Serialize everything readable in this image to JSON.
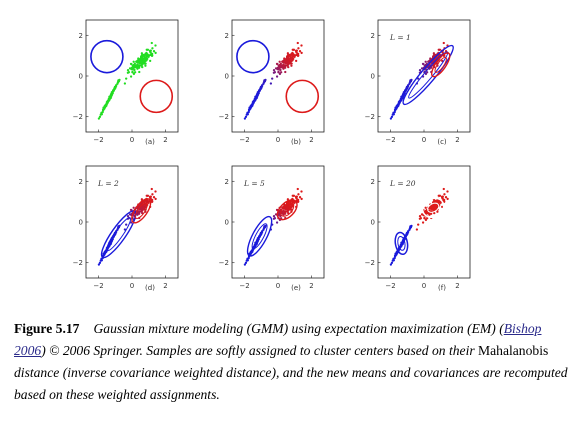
{
  "panels": [
    {
      "id": "a",
      "label": "(a)",
      "L_text": ""
    },
    {
      "id": "b",
      "label": "(b)",
      "L_text": ""
    },
    {
      "id": "c",
      "label": "(c)",
      "L_text": "L = 1"
    },
    {
      "id": "d",
      "label": "(d)",
      "L_text": "L = 2"
    },
    {
      "id": "e",
      "label": "(e)",
      "L_text": "L = 5"
    },
    {
      "id": "f",
      "label": "(f)",
      "L_text": "L = 20"
    }
  ],
  "axis": {
    "xticks": [
      "−2",
      "0",
      "2"
    ],
    "yticks": [
      "2",
      "0",
      "−2"
    ]
  },
  "colors": {
    "blue": "#1a1adb",
    "red": "#dd1a1a",
    "green": "#22dd22",
    "purple": "#7a1ab0"
  },
  "caption": {
    "label": "Figure 5.17",
    "part1": "Gaussian mixture modeling (GMM) using expectation maximization (EM)",
    "paren_open": "(",
    "citation": "Bishop 2006",
    "paren_close": ")",
    "part2": " © 2006 Springer.  Samples are softly assigned to cluster centers based on their ",
    "mahalanobis": "Mahalanobis",
    "part3": " distance (",
    "part4": "inverse covariance weighted distance",
    "part5": "), and the new means and covariances are recomputed based on these weighted assignments."
  }
}
